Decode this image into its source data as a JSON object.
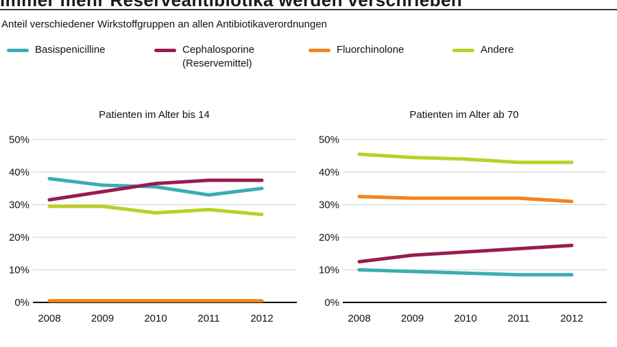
{
  "page": {
    "title": "Immer mehr Reserveantibiotika werden verschrieben",
    "subtitle": "Anteil verschiedener Wirkstoffgruppen an allen Antibiotikaverordnungen"
  },
  "legend": [
    {
      "label": "Basispenicilline",
      "label2": "",
      "color": "#3AADB3"
    },
    {
      "label": "Cephalosporine",
      "label2": "(Reservemittel)",
      "color": "#981C52"
    },
    {
      "label": "Fluorchinolone",
      "label2": "",
      "color": "#F5821E"
    },
    {
      "label": "Andere",
      "label2": "",
      "color": "#BDCE27"
    }
  ],
  "colors": {
    "grid": "#cfcfcf",
    "axis": "#000000",
    "text": "#111111"
  },
  "chart_data": [
    {
      "type": "line",
      "title": "Patienten im Alter bis 14",
      "x": [
        "2008",
        "2009",
        "2010",
        "2011",
        "2012"
      ],
      "ylim": [
        0,
        50
      ],
      "yticks": [
        "0%",
        "10%",
        "20%",
        "30%",
        "40%",
        "50%"
      ],
      "grid": true,
      "legend_position": "top",
      "series": [
        {
          "name": "Basispenicilline",
          "color": "#3AADB3",
          "values": [
            38,
            36,
            35.5,
            33,
            35
          ]
        },
        {
          "name": "Cephalosporine (Reservemittel)",
          "color": "#981C52",
          "values": [
            31.5,
            34,
            36.5,
            37.5,
            37.5
          ]
        },
        {
          "name": "Fluorchinolone",
          "color": "#F5821E",
          "values": [
            0.5,
            0.5,
            0.5,
            0.5,
            0.5
          ]
        },
        {
          "name": "Andere",
          "color": "#BDCE27",
          "values": [
            29.5,
            29.5,
            27.5,
            28.5,
            27
          ]
        }
      ]
    },
    {
      "type": "line",
      "title": "Patienten im Alter ab 70",
      "x": [
        "2008",
        "2009",
        "2010",
        "2011",
        "2012"
      ],
      "ylim": [
        0,
        50
      ],
      "yticks": [
        "0%",
        "10%",
        "20%",
        "30%",
        "40%",
        "50%"
      ],
      "grid": true,
      "legend_position": "top",
      "series": [
        {
          "name": "Basispenicilline",
          "color": "#3AADB3",
          "values": [
            10,
            9.5,
            9,
            8.5,
            8.5
          ]
        },
        {
          "name": "Cephalosporine (Reservemittel)",
          "color": "#981C52",
          "values": [
            12.5,
            14.5,
            15.5,
            16.5,
            17.5
          ]
        },
        {
          "name": "Fluorchinolone",
          "color": "#F5821E",
          "values": [
            32.5,
            32,
            32,
            32,
            31
          ]
        },
        {
          "name": "Andere",
          "color": "#BDCE27",
          "values": [
            45.5,
            44.5,
            44,
            43,
            43
          ]
        }
      ]
    }
  ]
}
